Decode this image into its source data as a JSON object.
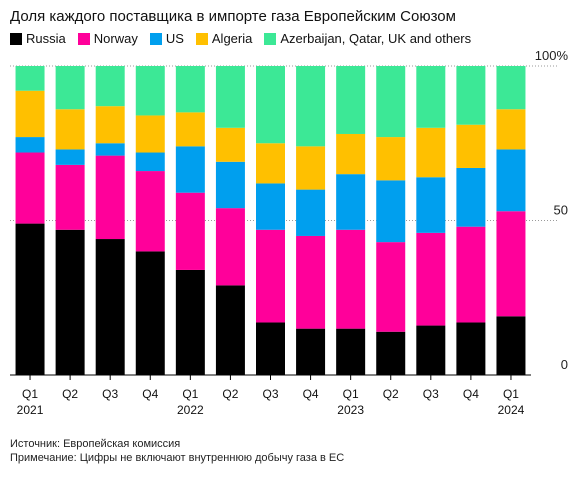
{
  "title": "Доля каждого поставщика в импорте газа Европейским Союзом",
  "colors": {
    "Russia": "#000000",
    "Norway": "#ff009a",
    "US": "#009fee",
    "Algeria": "#ffc000",
    "Azerbaijan, Qatar, UK and others": "#3ce896"
  },
  "chart_data": {
    "type": "bar",
    "stacked": true,
    "title": "Доля каждого поставщика в импорте газа Европейским Союзом",
    "categories": [
      "Q1 2021",
      "Q2",
      "Q3",
      "Q4",
      "Q1 2022",
      "Q2",
      "Q3",
      "Q4",
      "Q1 2023",
      "Q2",
      "Q3",
      "Q4",
      "Q1 2024"
    ],
    "tick_labels": [
      {
        "q": "Q1",
        "year": "2021"
      },
      {
        "q": "Q2",
        "year": ""
      },
      {
        "q": "Q3",
        "year": ""
      },
      {
        "q": "Q4",
        "year": ""
      },
      {
        "q": "Q1",
        "year": "2022"
      },
      {
        "q": "Q2",
        "year": ""
      },
      {
        "q": "Q3",
        "year": ""
      },
      {
        "q": "Q4",
        "year": ""
      },
      {
        "q": "Q1",
        "year": "2023"
      },
      {
        "q": "Q2",
        "year": ""
      },
      {
        "q": "Q3",
        "year": ""
      },
      {
        "q": "Q4",
        "year": ""
      },
      {
        "q": "Q1",
        "year": "2024"
      }
    ],
    "series": [
      {
        "name": "Russia",
        "values": [
          49,
          47,
          44,
          40,
          34,
          29,
          17,
          15,
          15,
          14,
          16,
          17,
          19
        ]
      },
      {
        "name": "Norway",
        "values": [
          23,
          21,
          27,
          26,
          25,
          25,
          30,
          30,
          32,
          29,
          30,
          31,
          34
        ]
      },
      {
        "name": "US",
        "values": [
          5,
          5,
          4,
          6,
          15,
          15,
          15,
          15,
          18,
          20,
          18,
          19,
          20
        ]
      },
      {
        "name": "Algeria",
        "values": [
          15,
          13,
          12,
          12,
          11,
          11,
          13,
          14,
          13,
          14,
          16,
          14,
          13
        ]
      },
      {
        "name": "Azerbaijan, Qatar, UK and others",
        "values": [
          8,
          14,
          13,
          16,
          15,
          20,
          25,
          26,
          22,
          23,
          20,
          19,
          14
        ]
      }
    ],
    "ylim": [
      0,
      100
    ],
    "y_ticks": [
      {
        "value": 100,
        "label": "100%"
      },
      {
        "value": 50,
        "label": "50"
      },
      {
        "value": 0,
        "label": "0"
      }
    ],
    "grid": true,
    "legend_position": "top-left",
    "y_axis_position": "right"
  },
  "footnotes": {
    "source": "Источник: Европейская комиссия",
    "note": "Примечание: Цифры не включают внутреннюю добычу газа в ЕС"
  }
}
